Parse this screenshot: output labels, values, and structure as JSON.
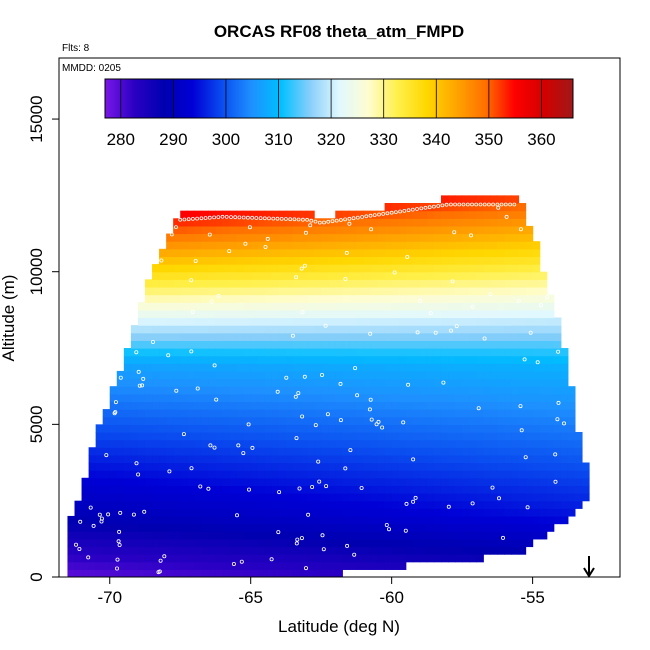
{
  "chart_data": {
    "type": "heatmap",
    "title": "ORCAS RF08 theta_atm_FMPD",
    "annotations": {
      "flights": "Flts: 8",
      "date": "MMDD: 0205"
    },
    "xlabel": "Latitude (deg N)",
    "ylabel": "Altitude (m)",
    "xlim": [
      -71.8,
      -51.9
    ],
    "ylim": [
      0,
      17000
    ],
    "xticks": [
      -70,
      -65,
      -60,
      -55
    ],
    "yticks": [
      0,
      5000,
      10000,
      15000
    ],
    "xtick_labels": [
      "-70",
      "-65",
      "-60",
      "-55"
    ],
    "ytick_labels": [
      "0",
      "5000",
      "10000",
      "15000"
    ],
    "colorbar": {
      "min": 277,
      "max": 366,
      "ticks": [
        280,
        290,
        300,
        310,
        320,
        330,
        340,
        350,
        360
      ],
      "tick_labels": [
        "280",
        "290",
        "300",
        "310",
        "320",
        "330",
        "340",
        "350",
        "360"
      ],
      "colors": [
        "#7a17e6",
        "#2a00c4",
        "#0000b0",
        "#0000d6",
        "#0a4cf0",
        "#1e90ff",
        "#00bfff",
        "#87cefa",
        "#e0f8ff",
        "#fffdd0",
        "#fff04a",
        "#ffd700",
        "#ffa500",
        "#ff7000",
        "#ff0000",
        "#d40000",
        "#a01818"
      ]
    },
    "field": {
      "description_values": "theta (K) at latitude/altitude",
      "lat_step": 0.25,
      "alt_step": 250,
      "extent": {
        "lat_min": -71.5,
        "lat_max": -53.1,
        "top_alt_at_lat": [
          [
            -71.5,
            1500
          ],
          [
            -71.0,
            2600
          ],
          [
            -70.5,
            4500
          ],
          [
            -70.0,
            5800
          ],
          [
            -69.5,
            7000
          ],
          [
            -69.0,
            8500
          ],
          [
            -68.5,
            10000
          ],
          [
            -68.0,
            11000
          ],
          [
            -67.5,
            11800
          ],
          [
            -66.0,
            11900
          ],
          [
            -63.0,
            11800
          ],
          [
            -62.5,
            11700
          ],
          [
            -61.0,
            11900
          ],
          [
            -58.0,
            12300
          ],
          [
            -55.5,
            12300
          ],
          [
            -55.0,
            11200
          ],
          [
            -54.5,
            9600
          ],
          [
            -54.0,
            8000
          ],
          [
            -53.7,
            6800
          ],
          [
            -53.5,
            5000
          ],
          [
            -53.1,
            3500
          ]
        ],
        "bottom_alt_at_lat": [
          [
            -71.5,
            0
          ],
          [
            -66.5,
            0
          ],
          [
            -63.0,
            100
          ],
          [
            -61.0,
            350
          ],
          [
            -58.0,
            650
          ],
          [
            -55.5,
            850
          ],
          [
            -54.5,
            1500
          ],
          [
            -53.8,
            2000
          ],
          [
            -53.1,
            2700
          ]
        ]
      }
    },
    "surface_marker": {
      "lat": -53.0,
      "symbol": "down-arrow"
    }
  }
}
